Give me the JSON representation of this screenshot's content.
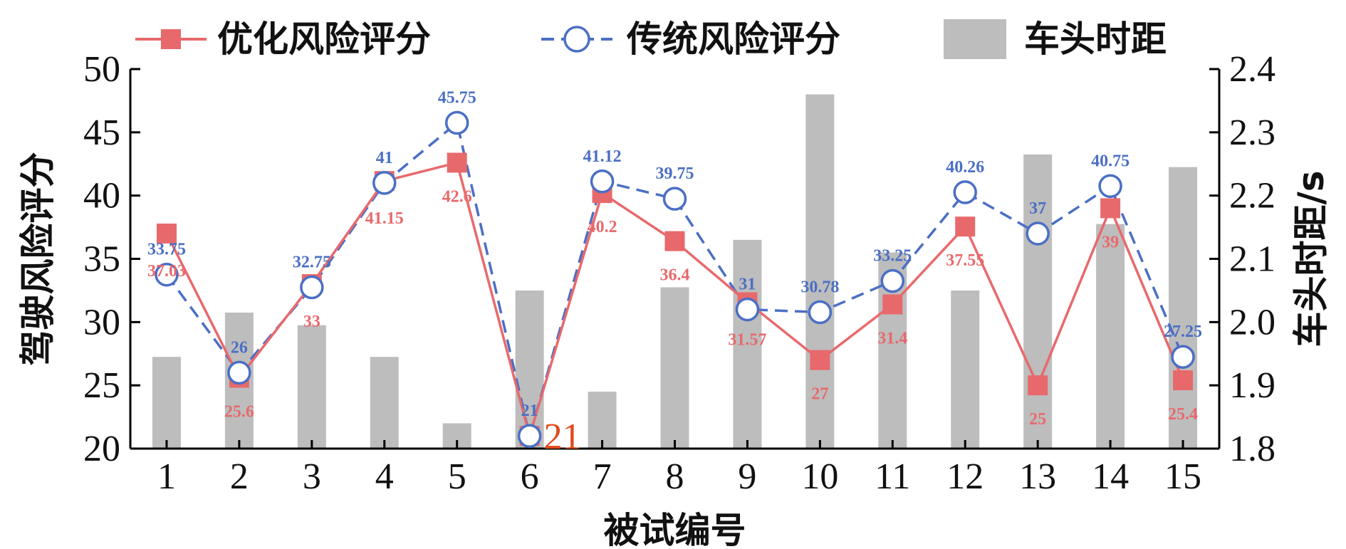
{
  "chart_data": {
    "type": "bar",
    "xlabel": "被试编号",
    "ylabel": "驾驶风险评分",
    "y2label": "车头时距/s",
    "categories": [
      "1",
      "2",
      "3",
      "4",
      "5",
      "6",
      "7",
      "8",
      "9",
      "10",
      "11",
      "12",
      "13",
      "14",
      "15"
    ],
    "ylim": [
      20,
      50
    ],
    "yticks": [
      "20",
      "25",
      "30",
      "35",
      "40",
      "45",
      "50"
    ],
    "y2lim": [
      1.8,
      2.4
    ],
    "y2ticks": [
      "1.8",
      "1.9",
      "2.0",
      "2.1",
      "2.2",
      "2.3",
      "2.4"
    ],
    "legend_position": "top",
    "series": [
      {
        "name": "优化风险评分",
        "kind": "line",
        "axis": "left",
        "color": "#e8696c",
        "marker": "filled-square",
        "values": [
          37.0,
          25.6,
          33,
          41.15,
          42.6,
          21,
          40.2,
          36.4,
          31.57,
          27,
          31.4,
          37.55,
          25,
          39,
          25.4
        ],
        "labels": [
          "37.03",
          "25.6",
          "33",
          "41.15",
          "42.6",
          "",
          "40.2",
          "36.4",
          "31.57",
          "27",
          "31.4",
          "37.55",
          "25",
          "39",
          "25.4"
        ]
      },
      {
        "name": "传统风险评分",
        "kind": "line",
        "axis": "left",
        "color": "#4b6fc4",
        "marker": "open-circle",
        "dashed": true,
        "values": [
          33.75,
          26,
          32.75,
          41,
          45.75,
          21,
          41.12,
          39.75,
          31,
          30.78,
          33.25,
          40.26,
          37,
          40.75,
          27.25
        ],
        "labels": [
          "33.75",
          "26",
          "32.75",
          "41",
          "45.75",
          "21",
          "41.12",
          "39.75",
          "31",
          "30.78",
          "33.25",
          "40.26",
          "37",
          "40.75",
          "27.25"
        ]
      },
      {
        "name": "车头时距",
        "kind": "bar",
        "axis": "right",
        "color": "#bdbdbd",
        "values": [
          1.945,
          2.015,
          1.995,
          1.945,
          1.84,
          2.05,
          1.89,
          2.055,
          2.13,
          2.36,
          2.11,
          2.05,
          2.265,
          2.155,
          2.245
        ]
      }
    ],
    "annotations": [
      {
        "text": "21",
        "category": "6",
        "color": "#e2481c"
      }
    ]
  }
}
